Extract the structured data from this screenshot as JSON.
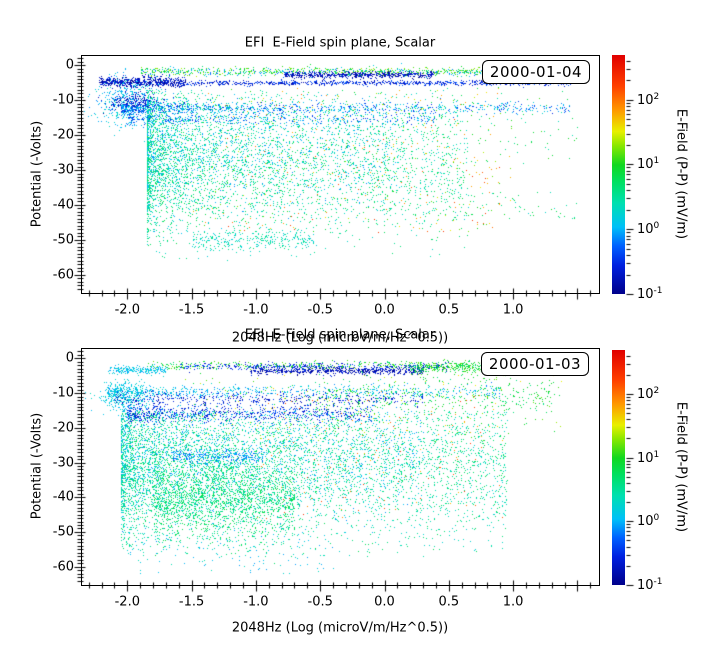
{
  "chart_data": {
    "type": "scatter",
    "title": "EFI  E-Field spin plane, Scalar",
    "xlabel": "2048Hz (Log (microV/m/Hz^0.5))",
    "ylabel": "Potential (-Volts)",
    "xlim": [
      -2.36,
      1.66
    ],
    "ylim": [
      3,
      -65
    ],
    "x_major_ticks": [
      -2.0,
      -1.5,
      -1.0,
      -0.5,
      0.0,
      0.5,
      1.0
    ],
    "x_tick_labels": [
      "-2.0",
      "-1.5",
      "-1.0",
      "-0.5",
      "0.0",
      "0.5",
      "1.0"
    ],
    "x_minor_step": 0.1,
    "y_major_ticks": [
      0,
      -10,
      -20,
      -30,
      -40,
      -50,
      -60
    ],
    "y_tick_labels": [
      "0",
      "-10",
      "-20",
      "-30",
      "-40",
      "-50",
      "-60"
    ],
    "y_minor_step": 1,
    "grid": false,
    "colorbar": {
      "label": "E-Field (P-P) (mV/m)",
      "scale": "log",
      "min_mV_m": 0.1,
      "max_mV_m": 490,
      "log_range": [
        -1,
        2.69
      ],
      "decade_base": "10",
      "decade_exponents": [
        "2",
        "1",
        "0",
        "-1"
      ],
      "stops": [
        {
          "pos": 0.0,
          "color": "#00008a"
        },
        {
          "pos": 0.12,
          "color": "#0020e0"
        },
        {
          "pos": 0.2,
          "color": "#0060ff"
        },
        {
          "pos": 0.28,
          "color": "#00c0f8"
        },
        {
          "pos": 0.38,
          "color": "#00e0b0"
        },
        {
          "pos": 0.47,
          "color": "#00e060"
        },
        {
          "pos": 0.54,
          "color": "#10d820"
        },
        {
          "pos": 0.62,
          "color": "#88e800"
        },
        {
          "pos": 0.68,
          "color": "#e8f000"
        },
        {
          "pos": 0.77,
          "color": "#ff9800"
        },
        {
          "pos": 0.87,
          "color": "#ff4000"
        },
        {
          "pos": 1.0,
          "color": "#e00000"
        }
      ]
    },
    "panels": [
      {
        "date": "2000-01-04",
        "seed": 12345,
        "clusters": [
          {
            "name": "surface-band-green",
            "x": [
              -1.9,
              1.45
            ],
            "y": {
              "c": -1.6,
              "sd": 0.55
            },
            "n": 700,
            "la": [
              0.6,
              1.4
            ]
          },
          {
            "name": "surface-band-cyan",
            "x": [
              -1.9,
              1.45
            ],
            "y": {
              "c": -1.8,
              "sd": 0.6
            },
            "n": 300,
            "la": [
              -0.3,
              0.3
            ]
          },
          {
            "name": "navy-segment",
            "x": [
              -0.78,
              0.38
            ],
            "y": {
              "c": -2.6,
              "sd": 0.45
            },
            "n": 550,
            "la": [
              -1.0,
              -0.55
            ]
          },
          {
            "name": "navy-blob-left",
            "x": [
              -2.22,
              -1.55
            ],
            "y": {
              "c": -4.6,
              "sd": 0.7
            },
            "n": 650,
            "la": [
              -1.0,
              -0.45
            ]
          },
          {
            "name": "blue-line-5",
            "x": [
              -1.6,
              1.45
            ],
            "y": {
              "c": -4.9,
              "sd": 0.35
            },
            "n": 800,
            "la": [
              -0.85,
              -0.25
            ]
          },
          {
            "name": "cyan-column-left",
            "x": {
              "c": -2.0,
              "sd": 0.13
            },
            "y": {
              "c": -10,
              "sd": 3.6
            },
            "n": 420,
            "la": [
              -0.15,
              0.35
            ]
          },
          {
            "name": "blue-patch-left",
            "x": {
              "c": -1.95,
              "sd": 0.1
            },
            "y": {
              "c": -10.5,
              "sd": 1.3
            },
            "n": 220,
            "la": [
              -0.9,
              -0.4
            ]
          },
          {
            "name": "band-12",
            "x": [
              -2.05,
              1.45
            ],
            "xbias": 1.7,
            "y": {
              "c": -12.2,
              "sd": 0.9
            },
            "n": 1000,
            "la": [
              -0.55,
              0.25
            ]
          },
          {
            "name": "band-15",
            "x": [
              -2.0,
              0.4
            ],
            "xbias": 1.4,
            "y": {
              "c": -15.2,
              "sd": 0.8
            },
            "n": 380,
            "la": [
              -0.6,
              0.2
            ]
          },
          {
            "name": "main-cloud-teal",
            "x": [
              -1.85,
              0.65
            ],
            "xbias": 1.9,
            "y": {
              "c": -27,
              "sd": 11
            },
            "yclip": [
              -56,
              -7
            ],
            "n": 4000,
            "la": [
              0.2,
              0.85
            ]
          },
          {
            "name": "main-cloud-cyan",
            "x": [
              -1.85,
              0.1
            ],
            "xbias": 1.7,
            "y": {
              "c": -24,
              "sd": 9
            },
            "yclip": [
              -52,
              -8
            ],
            "n": 950,
            "la": [
              -0.15,
              0.25
            ]
          },
          {
            "name": "sparse-green-yellow",
            "x": [
              -1.5,
              1.0
            ],
            "y": [
              -48,
              -6
            ],
            "n": 260,
            "la": [
              0.9,
              1.9
            ]
          },
          {
            "name": "sparse-yellow",
            "x": [
              -1.3,
              0.9
            ],
            "y": [
              -48,
              -8
            ],
            "n": 110,
            "la": [
              1.6,
              2.3
            ]
          },
          {
            "name": "deep-streak-50",
            "x": [
              -1.5,
              -0.55
            ],
            "y": {
              "c": -50,
              "sd": 1.4
            },
            "n": 300,
            "la": [
              0.15,
              0.6
            ]
          },
          {
            "name": "right-specks-low",
            "x": [
              0.5,
              1.5
            ],
            "y": [
              -44,
              -36
            ],
            "n": 60,
            "la": [
              0.2,
              1.0
            ]
          },
          {
            "name": "right-specks-upper",
            "x": [
              0.4,
              1.5
            ],
            "y": [
              -28,
              -6
            ],
            "n": 100,
            "la": [
              0.3,
              1.1
            ]
          }
        ]
      },
      {
        "date": "2000-01-03",
        "seed": 67890,
        "clusters": [
          {
            "name": "surface-band-green",
            "x": [
              -1.85,
              1.45
            ],
            "y": {
              "c": -2.0,
              "sd": 0.6
            },
            "n": 550,
            "la": [
              0.6,
              1.3
            ]
          },
          {
            "name": "surface-band-blue",
            "x": [
              -1.6,
              0.5
            ],
            "y": {
              "c": -2.2,
              "sd": 0.5
            },
            "n": 350,
            "la": [
              -0.75,
              -0.25
            ]
          },
          {
            "name": "navy-segment",
            "x": [
              -1.05,
              0.3
            ],
            "y": {
              "c": -3.4,
              "sd": 0.5
            },
            "n": 600,
            "la": [
              -1.0,
              -0.5
            ]
          },
          {
            "name": "green-blob-right",
            "x": [
              0.2,
              1.45
            ],
            "y": {
              "c": -2.6,
              "sd": 0.9
            },
            "n": 500,
            "la": [
              0.6,
              1.2
            ]
          },
          {
            "name": "cyan-streak-left",
            "x": [
              -2.15,
              -1.7
            ],
            "y": {
              "c": -3.2,
              "sd": 0.6
            },
            "n": 220,
            "la": [
              -0.1,
              0.3
            ]
          },
          {
            "name": "cyan-band-9",
            "x": [
              -2.15,
              0.9
            ],
            "xbias": 1.6,
            "y": {
              "c": -9.5,
              "sd": 1.0
            },
            "n": 650,
            "la": [
              -0.2,
              0.3
            ]
          },
          {
            "name": "blue-band-11",
            "x": [
              -2.1,
              0.3
            ],
            "xbias": 1.4,
            "y": {
              "c": -11.5,
              "sd": 1.0
            },
            "n": 450,
            "la": [
              -0.85,
              -0.35
            ]
          },
          {
            "name": "cyan-blob-left",
            "x": {
              "c": -2.02,
              "sd": 0.1
            },
            "y": {
              "c": -10.5,
              "sd": 2.2
            },
            "n": 320,
            "la": [
              0.0,
              0.35
            ]
          },
          {
            "name": "blue-band-16",
            "x": [
              -2.0,
              -0.1
            ],
            "xbias": 1.5,
            "y": {
              "c": -15.8,
              "sd": 1.3
            },
            "n": 800,
            "la": [
              -0.8,
              -0.2
            ]
          },
          {
            "name": "green-speckle-mid",
            "x": [
              -0.6,
              1.3
            ],
            "y": {
              "c": -11,
              "sd": 3.0
            },
            "n": 400,
            "la": [
              0.55,
              1.1
            ]
          },
          {
            "name": "main-cloud-teal",
            "x": [
              -2.05,
              0.95
            ],
            "xbias": 1.6,
            "y": {
              "c": -30,
              "sd": 12
            },
            "yclip": [
              -57,
              -15
            ],
            "n": 5200,
            "la": [
              0.2,
              0.8
            ]
          },
          {
            "name": "main-cloud-cyan",
            "x": [
              -2.05,
              0.3
            ],
            "xbias": 1.5,
            "y": {
              "c": -27,
              "sd": 10
            },
            "yclip": [
              -55,
              -13
            ],
            "n": 1300,
            "la": [
              -0.15,
              0.25
            ]
          },
          {
            "name": "green-core",
            "x": [
              -1.8,
              -0.7
            ],
            "y": {
              "c": -40,
              "sd": 6
            },
            "n": 1700,
            "la": [
              0.4,
              0.9
            ]
          },
          {
            "name": "cyan-streak-28",
            "x": [
              -1.65,
              -0.95
            ],
            "y": {
              "c": -28,
              "sd": 0.9
            },
            "n": 260,
            "la": [
              -0.35,
              0.1
            ]
          },
          {
            "name": "sparse-yellow",
            "x": [
              -1.0,
              0.95
            ],
            "y": [
              -46,
              -8
            ],
            "n": 140,
            "la": [
              1.6,
              2.3
            ]
          },
          {
            "name": "sparse-green-wide",
            "x": [
              -1.6,
              1.4
            ],
            "y": [
              -24,
              -4
            ],
            "n": 220,
            "la": [
              0.8,
              1.6
            ]
          },
          {
            "name": "deep-sparse-cyan",
            "x": [
              -2.0,
              -0.4
            ],
            "y": [
              -62,
              -48
            ],
            "n": 130,
            "la": [
              -0.1,
              0.4
            ]
          }
        ]
      }
    ]
  }
}
